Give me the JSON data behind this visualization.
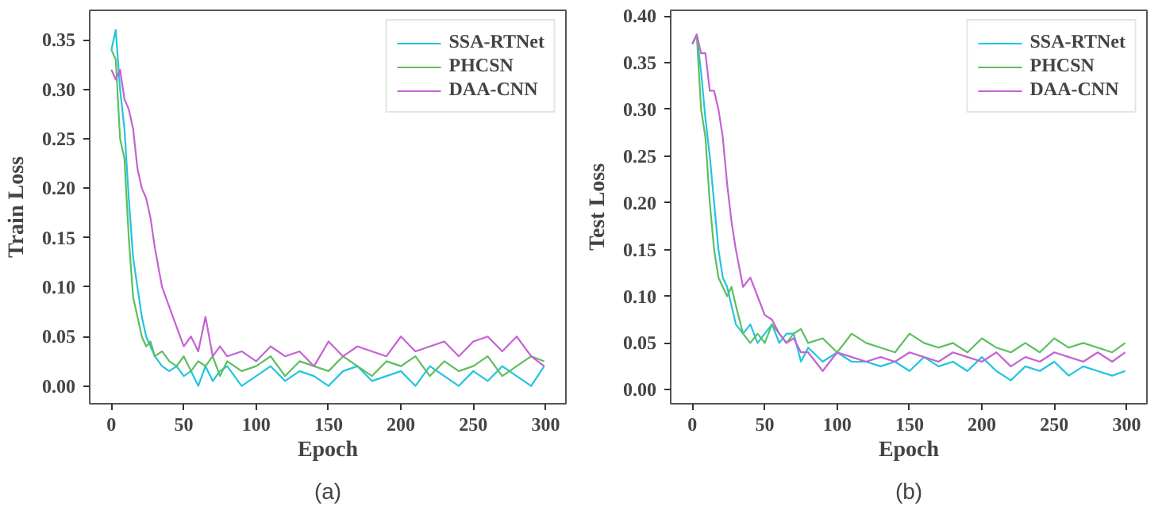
{
  "chart_data": [
    {
      "type": "line",
      "ylabel": "Train Loss",
      "xlabel": "Epoch",
      "annotations": [
        "(a)"
      ],
      "legend": "top right",
      "grid": false,
      "x": [
        0,
        3,
        6,
        9,
        12,
        15,
        18,
        21,
        24,
        27,
        30,
        35,
        40,
        45,
        50,
        55,
        60,
        65,
        70,
        75,
        80,
        90,
        100,
        110,
        120,
        130,
        140,
        150,
        160,
        170,
        180,
        190,
        200,
        210,
        220,
        230,
        240,
        250,
        260,
        270,
        280,
        290,
        299
      ],
      "xlim": [
        -15,
        314
      ],
      "xticks": [
        0,
        50,
        100,
        150,
        200,
        250,
        300
      ],
      "ylim": [
        -0.018,
        0.38
      ],
      "yticks": [
        {
          "value": 0,
          "label": "0.00"
        },
        {
          "value": 0.05,
          "label": "0.05"
        },
        {
          "value": 0.1,
          "label": "0.10"
        },
        {
          "value": 0.15,
          "label": "0.15"
        },
        {
          "value": 0.2,
          "label": "0.20"
        },
        {
          "value": 0.25,
          "label": "0.25"
        },
        {
          "value": 0.3,
          "label": "0.30"
        },
        {
          "value": 0.35,
          "label": "0.35"
        }
      ],
      "series": [
        {
          "name": "SSA-RTNet",
          "color": "#22c4e0",
          "values": [
            0.34,
            0.36,
            0.3,
            0.26,
            0.19,
            0.13,
            0.1,
            0.07,
            0.05,
            0.04,
            0.03,
            0.02,
            0.015,
            0.02,
            0.01,
            0.015,
            0.0,
            0.02,
            0.005,
            0.015,
            0.02,
            0.0,
            0.01,
            0.02,
            0.005,
            0.015,
            0.01,
            0.0,
            0.015,
            0.02,
            0.005,
            0.01,
            0.015,
            0.0,
            0.02,
            0.01,
            0.0,
            0.015,
            0.005,
            0.02,
            0.01,
            0.0,
            0.02
          ]
        },
        {
          "name": "PHCSN",
          "color": "#5cbf5c",
          "values": [
            0.34,
            0.33,
            0.25,
            0.23,
            0.15,
            0.09,
            0.07,
            0.05,
            0.04,
            0.045,
            0.03,
            0.035,
            0.025,
            0.02,
            0.03,
            0.015,
            0.025,
            0.02,
            0.03,
            0.01,
            0.025,
            0.015,
            0.02,
            0.03,
            0.01,
            0.025,
            0.02,
            0.015,
            0.03,
            0.02,
            0.01,
            0.025,
            0.02,
            0.03,
            0.01,
            0.025,
            0.015,
            0.02,
            0.03,
            0.01,
            0.02,
            0.03,
            0.025
          ]
        },
        {
          "name": "DAA-CNN",
          "color": "#c462d4",
          "values": [
            0.32,
            0.31,
            0.32,
            0.29,
            0.28,
            0.26,
            0.22,
            0.2,
            0.19,
            0.17,
            0.14,
            0.1,
            0.08,
            0.06,
            0.04,
            0.05,
            0.035,
            0.07,
            0.03,
            0.04,
            0.03,
            0.035,
            0.025,
            0.04,
            0.03,
            0.035,
            0.02,
            0.045,
            0.03,
            0.04,
            0.035,
            0.03,
            0.05,
            0.035,
            0.04,
            0.045,
            0.03,
            0.045,
            0.05,
            0.035,
            0.05,
            0.03,
            0.02
          ]
        }
      ]
    },
    {
      "type": "line",
      "ylabel": "Test Loss",
      "xlabel": "Epoch",
      "annotations": [
        "(b)"
      ],
      "legend": "top right",
      "grid": false,
      "x": [
        0,
        3,
        6,
        9,
        12,
        15,
        18,
        21,
        24,
        27,
        30,
        35,
        40,
        45,
        50,
        55,
        60,
        65,
        70,
        75,
        80,
        90,
        100,
        110,
        120,
        130,
        140,
        150,
        160,
        170,
        180,
        190,
        200,
        210,
        220,
        230,
        240,
        250,
        260,
        270,
        280,
        290,
        299
      ],
      "xlim": [
        -15,
        314
      ],
      "xticks": [
        0,
        50,
        100,
        150,
        200,
        250,
        300
      ],
      "ylim": [
        -0.015,
        0.406
      ],
      "yticks": [
        {
          "value": 0,
          "label": "0.00"
        },
        {
          "value": 0.05,
          "label": "0.05"
        },
        {
          "value": 0.1,
          "label": "0.10"
        },
        {
          "value": 0.15,
          "label": "0.15"
        },
        {
          "value": 0.2,
          "label": "0.20"
        },
        {
          "value": 0.25,
          "label": "0.25"
        },
        {
          "value": 0.3,
          "label": "0.30"
        },
        {
          "value": 0.35,
          "label": "0.35"
        },
        {
          "value": 0.4,
          "label": "0.40"
        }
      ],
      "series": [
        {
          "name": "SSA-RTNet",
          "color": "#22c4e0",
          "values": [
            0.37,
            0.38,
            0.34,
            0.29,
            0.25,
            0.2,
            0.15,
            0.12,
            0.11,
            0.09,
            0.07,
            0.06,
            0.07,
            0.05,
            0.06,
            0.07,
            0.05,
            0.06,
            0.06,
            0.03,
            0.045,
            0.03,
            0.04,
            0.03,
            0.03,
            0.025,
            0.03,
            0.02,
            0.035,
            0.025,
            0.03,
            0.02,
            0.035,
            0.02,
            0.01,
            0.025,
            0.02,
            0.03,
            0.015,
            0.025,
            0.02,
            0.015,
            0.02
          ]
        },
        {
          "name": "PHCSN",
          "color": "#5cbf5c",
          "values": [
            0.37,
            0.38,
            0.3,
            0.27,
            0.2,
            0.15,
            0.12,
            0.11,
            0.1,
            0.11,
            0.09,
            0.06,
            0.05,
            0.06,
            0.05,
            0.07,
            0.06,
            0.05,
            0.06,
            0.065,
            0.05,
            0.055,
            0.04,
            0.06,
            0.05,
            0.045,
            0.04,
            0.06,
            0.05,
            0.045,
            0.05,
            0.04,
            0.055,
            0.045,
            0.04,
            0.05,
            0.04,
            0.055,
            0.045,
            0.05,
            0.045,
            0.04,
            0.05
          ]
        },
        {
          "name": "DAA-CNN",
          "color": "#c462d4",
          "values": [
            0.37,
            0.38,
            0.36,
            0.36,
            0.32,
            0.32,
            0.3,
            0.27,
            0.22,
            0.18,
            0.15,
            0.11,
            0.12,
            0.1,
            0.08,
            0.075,
            0.06,
            0.05,
            0.055,
            0.04,
            0.04,
            0.02,
            0.04,
            0.035,
            0.03,
            0.035,
            0.03,
            0.04,
            0.035,
            0.03,
            0.04,
            0.035,
            0.03,
            0.04,
            0.025,
            0.035,
            0.03,
            0.04,
            0.035,
            0.03,
            0.04,
            0.03,
            0.04
          ]
        }
      ]
    }
  ]
}
